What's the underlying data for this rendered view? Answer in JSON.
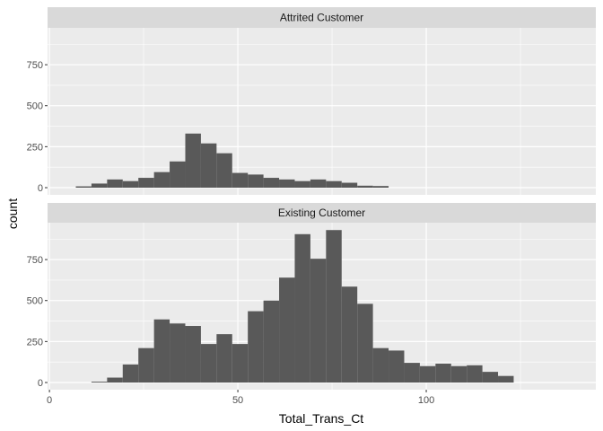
{
  "chart_data": {
    "type": "bar",
    "subtype": "faceted histogram",
    "xlabel": "Total_Trans_Ct",
    "ylabel": "count",
    "xlim": [
      -0.5,
      145
    ],
    "ylim": [
      0,
      975
    ],
    "x_ticks": [
      0,
      50,
      100
    ],
    "y_ticks": [
      0,
      250,
      500,
      750
    ],
    "x_tick_labels": [
      "0",
      "50",
      "100"
    ],
    "y_tick_labels": [
      "0",
      "250",
      "500",
      "750"
    ],
    "bin_width": 4.15,
    "grid": true,
    "colors": {
      "panel": "#EBEBEB",
      "strip": "#D9D9D9",
      "bar": "#595959",
      "grid": "#FFFFFF"
    },
    "facets": [
      {
        "name": "Attrited Customer",
        "bin_starts": [
          7,
          11.15,
          15.3,
          19.45,
          23.6,
          27.75,
          31.9,
          36.05,
          40.2,
          44.35,
          48.5,
          52.65,
          56.8,
          60.95,
          65.1,
          69.25,
          73.4,
          77.55,
          81.7,
          85.85
        ],
        "values": [
          8,
          25,
          50,
          40,
          60,
          95,
          160,
          330,
          270,
          210,
          90,
          80,
          60,
          50,
          40,
          50,
          40,
          30,
          12,
          10
        ]
      },
      {
        "name": "Existing Customer",
        "bin_starts": [
          11.15,
          15.3,
          19.45,
          23.6,
          27.75,
          31.9,
          36.05,
          40.2,
          44.35,
          48.5,
          52.65,
          56.8,
          60.95,
          65.1,
          69.25,
          73.4,
          77.55,
          81.7,
          85.85,
          90,
          94.15,
          98.3,
          102.45,
          106.6,
          110.75,
          114.9,
          119.05,
          123.2,
          127.35
        ],
        "values": [
          5,
          30,
          110,
          210,
          385,
          360,
          345,
          235,
          295,
          235,
          435,
          500,
          640,
          905,
          755,
          930,
          585,
          480,
          210,
          195,
          120,
          100,
          115,
          100,
          105,
          65,
          40,
          0,
          0
        ]
      }
    ]
  }
}
